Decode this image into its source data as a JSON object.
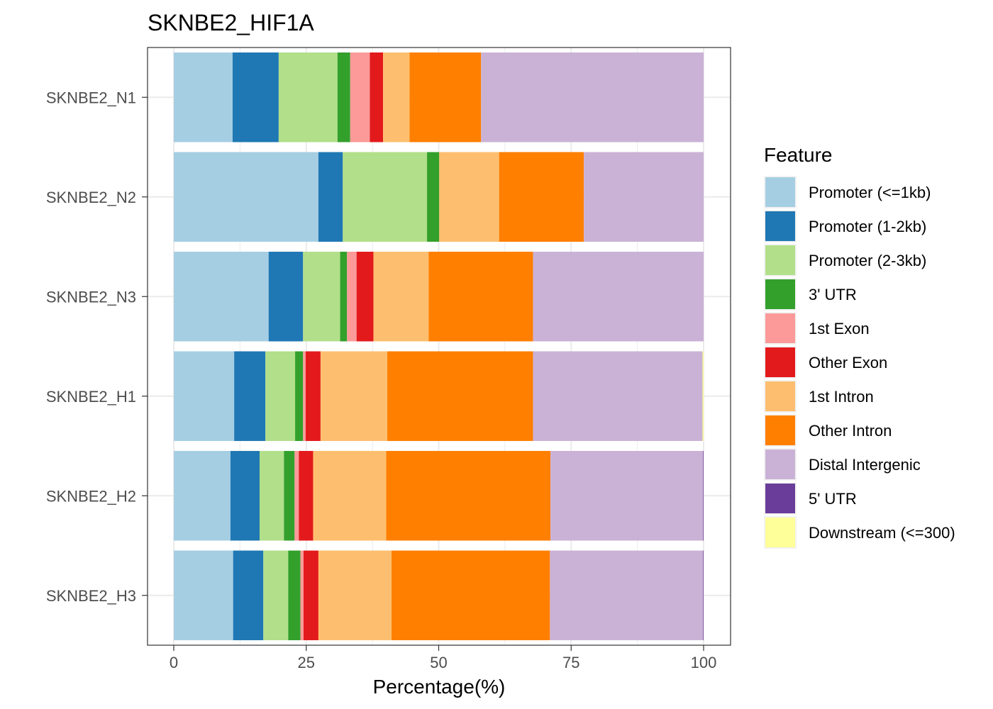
{
  "chart_data": {
    "type": "bar",
    "orientation": "horizontal",
    "stacked": true,
    "title": "SKNBE2_HIF1A",
    "xlabel": "Percentage(%)",
    "ylabel": "",
    "xlim": [
      0,
      100
    ],
    "xticks": [
      0,
      25,
      50,
      75,
      100
    ],
    "grid": true,
    "legend_position": "right",
    "legend_title": "Feature",
    "categories": [
      "SKNBE2_N1",
      "SKNBE2_N2",
      "SKNBE2_N3",
      "SKNBE2_H1",
      "SKNBE2_H2",
      "SKNBE2_H3"
    ],
    "series": [
      {
        "name": "Promoter (<=1kb)",
        "color": "#A6CEE3",
        "values": [
          11.1,
          27.3,
          17.9,
          11.4,
          10.7,
          11.2
        ]
      },
      {
        "name": "Promoter (1-2kb)",
        "color": "#1F78B4",
        "values": [
          8.7,
          4.6,
          6.5,
          5.9,
          5.5,
          5.7
        ]
      },
      {
        "name": "Promoter (2-3kb)",
        "color": "#B2DF8A",
        "values": [
          11.1,
          15.9,
          7.0,
          5.6,
          4.6,
          4.7
        ]
      },
      {
        "name": "3' UTR",
        "color": "#33A02C",
        "values": [
          2.4,
          2.3,
          1.3,
          1.5,
          2.0,
          2.3
        ]
      },
      {
        "name": "1st Exon",
        "color": "#FB9A99",
        "values": [
          3.7,
          0.0,
          1.8,
          0.5,
          0.8,
          0.6
        ]
      },
      {
        "name": "Other Exon",
        "color": "#E31A1C",
        "values": [
          2.5,
          0.0,
          3.2,
          2.8,
          2.7,
          2.8
        ]
      },
      {
        "name": "1st Intron",
        "color": "#FDBF6F",
        "values": [
          5.0,
          11.3,
          10.4,
          12.6,
          13.8,
          13.8
        ]
      },
      {
        "name": "Other Intron",
        "color": "#FF7F00",
        "values": [
          13.5,
          16.0,
          19.7,
          27.5,
          31.0,
          29.9
        ]
      },
      {
        "name": "Distal Intergenic",
        "color": "#CAB2D6",
        "values": [
          42.0,
          22.6,
          32.2,
          32.0,
          28.8,
          28.9
        ]
      },
      {
        "name": "5' UTR",
        "color": "#6A3D9A",
        "values": [
          0.0,
          0.0,
          0.0,
          0.0,
          0.1,
          0.1
        ]
      },
      {
        "name": "Downstream (<=300)",
        "color": "#FFFF99",
        "values": [
          0.0,
          0.0,
          0.0,
          0.2,
          0.0,
          0.0
        ]
      }
    ]
  }
}
